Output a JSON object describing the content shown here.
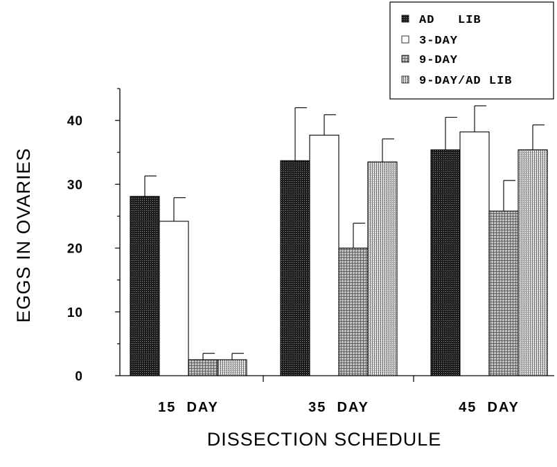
{
  "chart_data": {
    "type": "bar",
    "title": "",
    "xlabel": "DISSECTION SCHEDULE",
    "ylabel": "EGGS IN OVARIES",
    "categories": [
      "15  DAY",
      "35  DAY",
      "45  DAY"
    ],
    "ylim": [
      0,
      45
    ],
    "yticks": [
      0,
      10,
      20,
      30,
      40
    ],
    "ytick_labels": [
      "0",
      "10",
      "20",
      "30",
      "40"
    ],
    "grid": false,
    "legend_position": "top-right",
    "error_bars": "upper only",
    "series": [
      {
        "name": "AD   LIB",
        "pattern": "dense-dots",
        "color": "#1a1a1a",
        "values": [
          28.1,
          33.7,
          35.4
        ],
        "errors": [
          3.2,
          8.3,
          5.1
        ]
      },
      {
        "name": "3-DAY",
        "pattern": "white",
        "color": "#ffffff",
        "values": [
          24.2,
          37.7,
          38.2
        ],
        "errors": [
          3.7,
          3.2,
          4.1
        ]
      },
      {
        "name": "9-DAY",
        "pattern": "crosshatch",
        "color": "#6a6a6a",
        "values": [
          2.5,
          20.0,
          25.8
        ],
        "errors": [
          1.0,
          3.9,
          4.8
        ]
      },
      {
        "name": "9-DAY/AD LIB",
        "pattern": "vertical-lines",
        "color": "#8a8a8a",
        "values": [
          2.5,
          33.5,
          35.4
        ],
        "errors": [
          1.0,
          3.6,
          3.9
        ]
      }
    ]
  }
}
